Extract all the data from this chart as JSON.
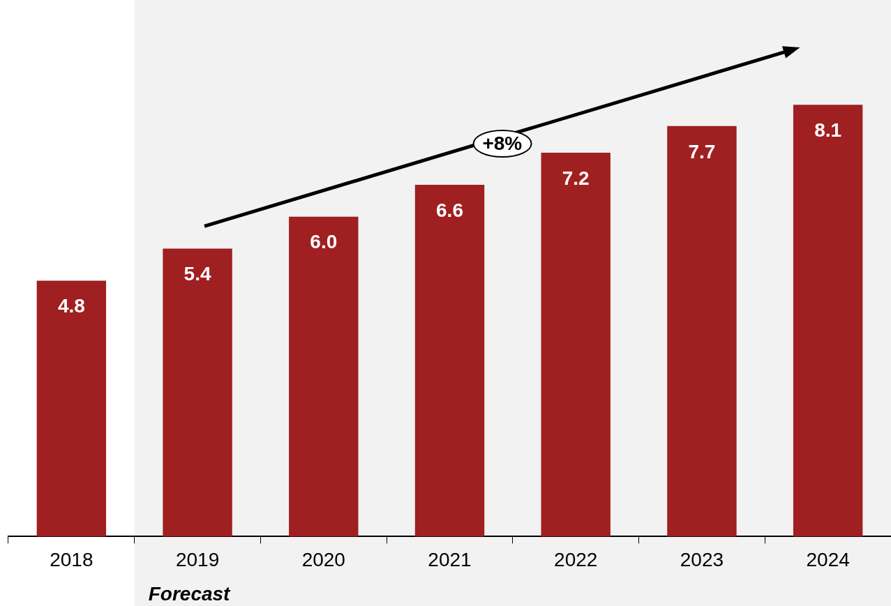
{
  "chart_data": {
    "type": "bar",
    "categories": [
      "2018",
      "2019",
      "2020",
      "2021",
      "2022",
      "2023",
      "2024"
    ],
    "values": [
      4.8,
      5.4,
      6.0,
      6.6,
      7.2,
      7.7,
      8.1
    ],
    "color": "#a01f20",
    "value_labels": [
      "4.8",
      "5.4",
      "6.0",
      "6.6",
      "7.2",
      "7.7",
      "8.1"
    ],
    "bands": [
      {
        "axis": "x",
        "from": "2019",
        "to": "2024",
        "label": "Forecast",
        "color": "#f2f2f2"
      }
    ],
    "annotations": [
      "+8%"
    ],
    "legend": false,
    "grid": false
  }
}
